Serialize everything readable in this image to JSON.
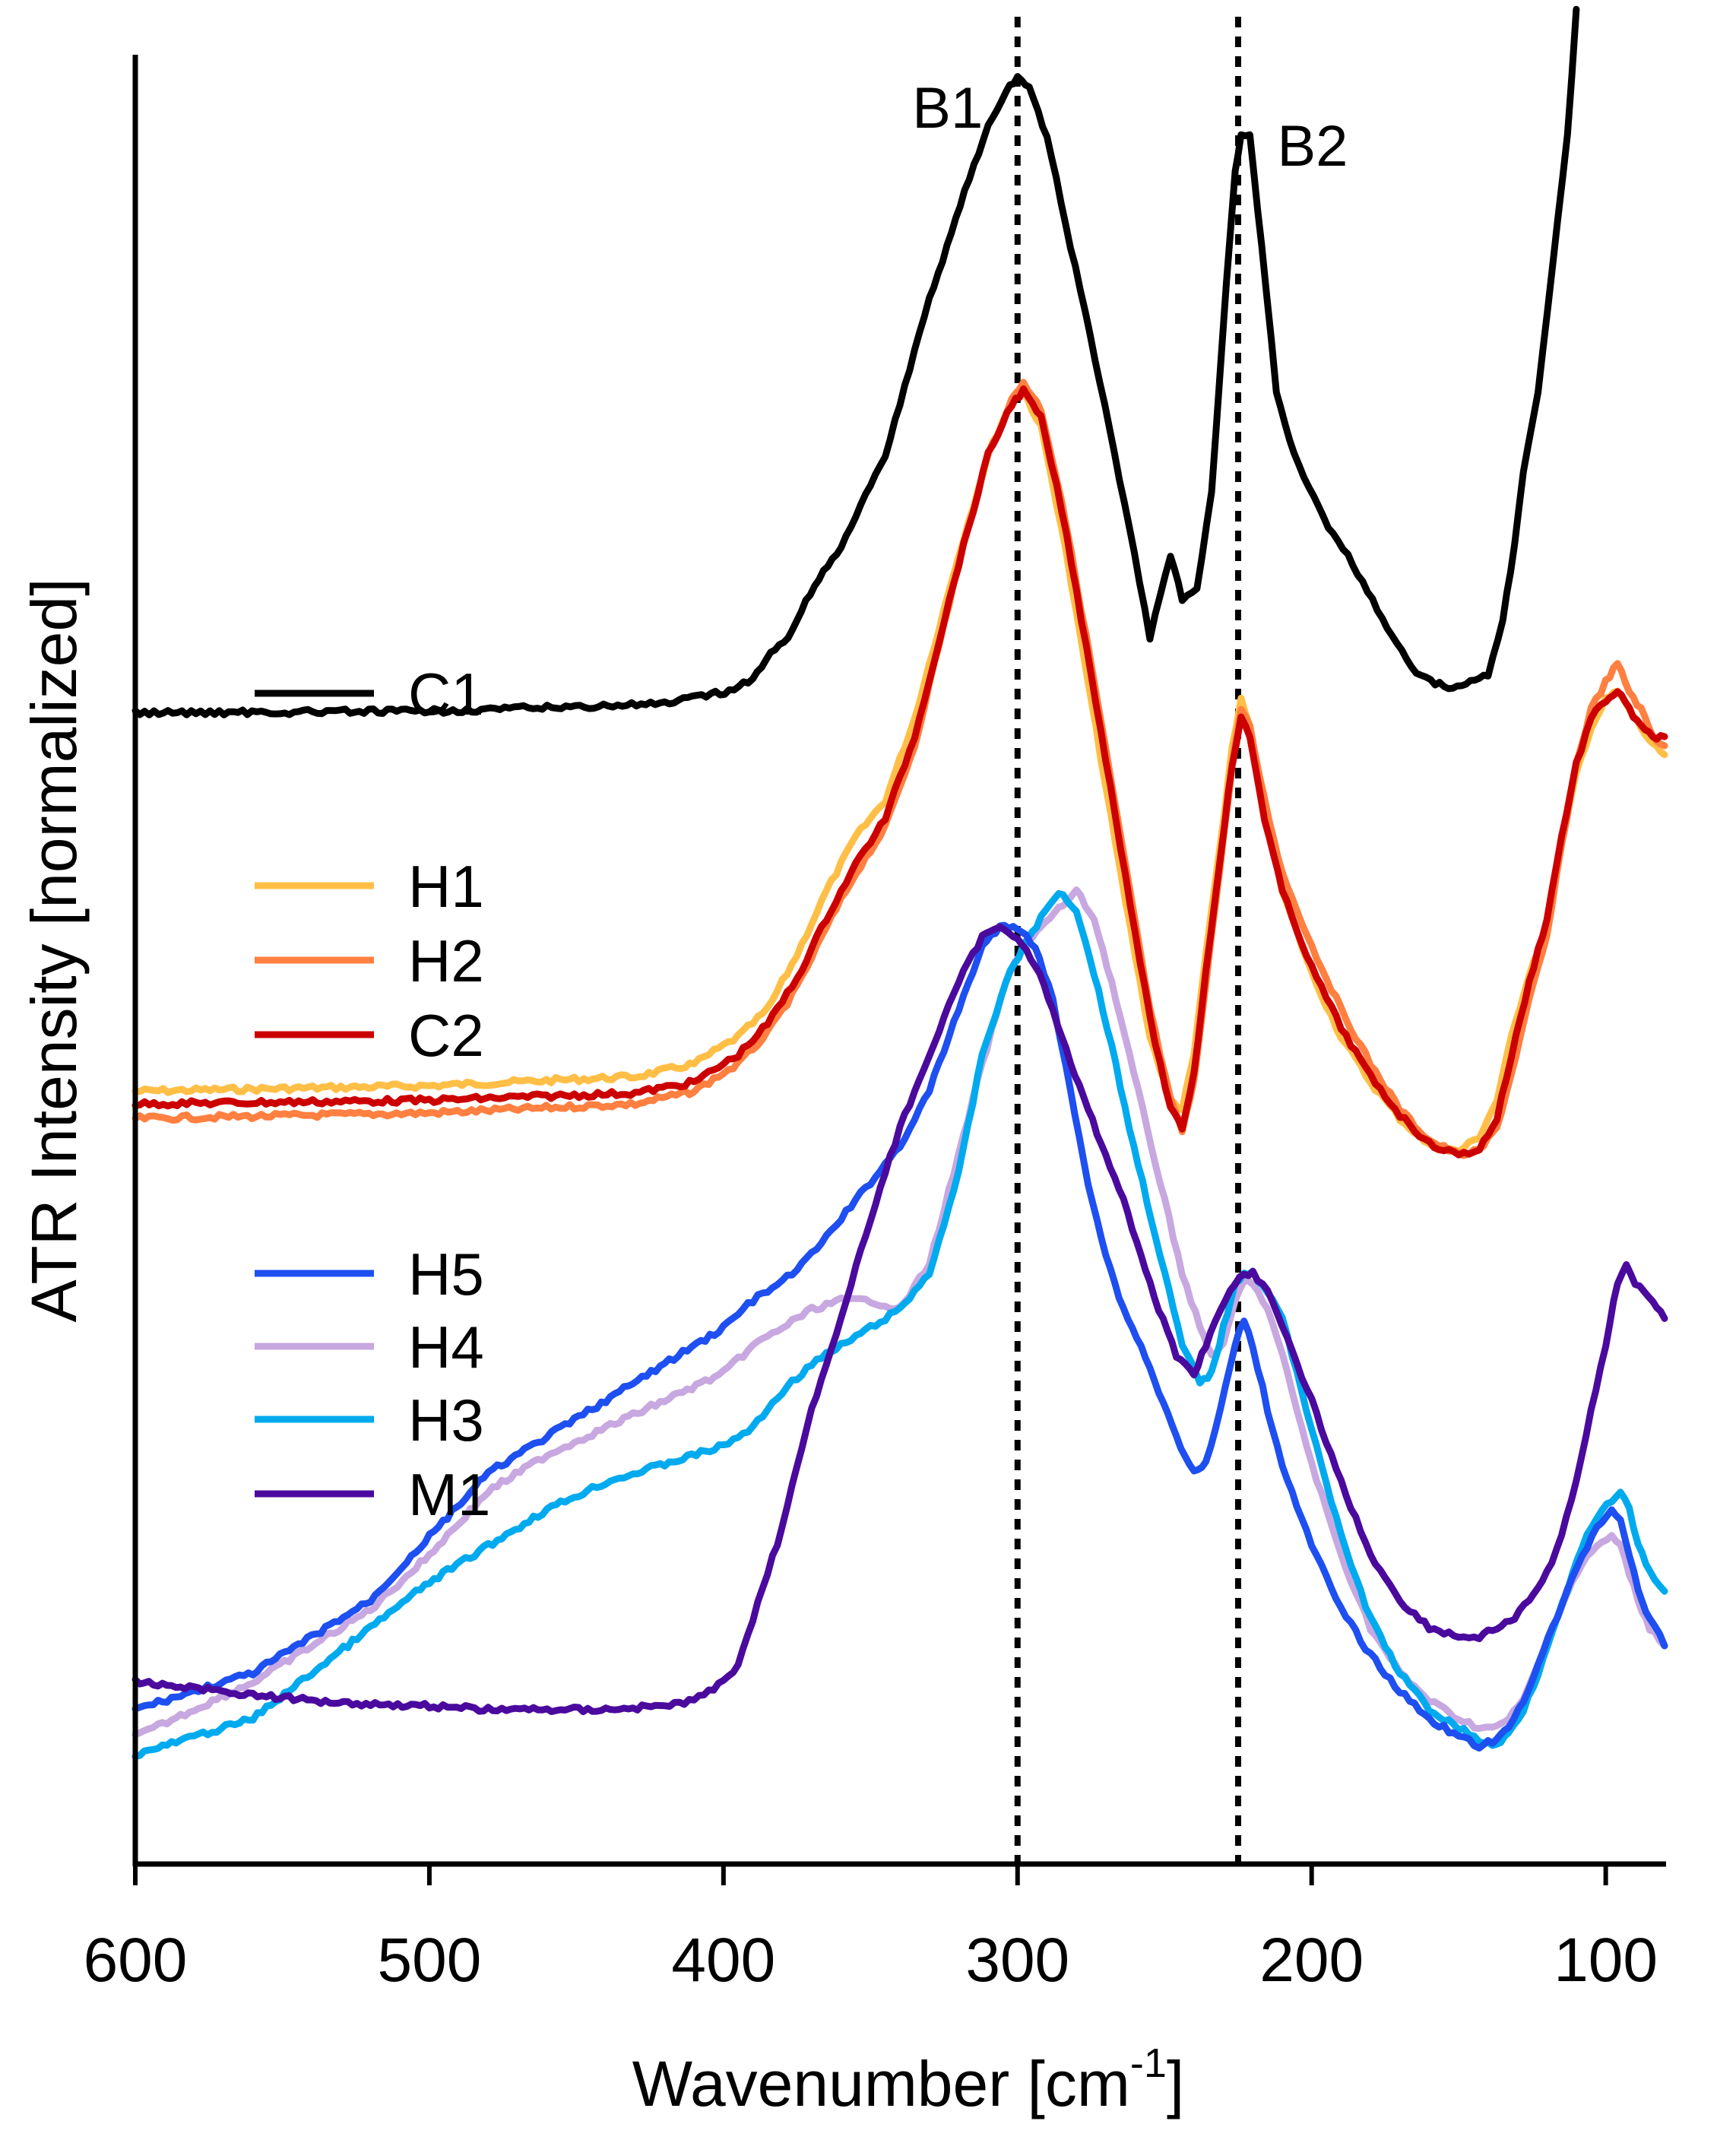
{
  "chart_data": {
    "type": "line",
    "title": "",
    "xlabel": "Wavenumber [cm",
    "xlabel_sup": "-1",
    "xlabel_suffix": "]",
    "ylabel": "ATR Intensity [normalized]",
    "xlim": [
      600,
      80
    ],
    "x_reversed": true,
    "y_ticks_shown": false,
    "ylim": [
      0,
      100
    ],
    "x_ticks": [
      600,
      500,
      400,
      300,
      200,
      100
    ],
    "x_tick_labels": [
      "600",
      "500",
      "400",
      "300",
      "200",
      "100"
    ],
    "reference_lines": [
      {
        "label": "B1",
        "x": 300,
        "style": "dotted"
      },
      {
        "label": "B2",
        "x": 225,
        "style": "dotted"
      }
    ],
    "legend_groups": [
      {
        "entries": [
          "C1"
        ]
      },
      {
        "entries": [
          "H1",
          "H2",
          "C2"
        ]
      },
      {
        "entries": [
          "H5",
          "H4",
          "H3",
          "M1"
        ]
      }
    ],
    "series": [
      {
        "name": "C1",
        "color": "#000000",
        "x": [
          600,
          500,
          420,
          398,
          390,
          384,
          378,
          372,
          360,
          345,
          330,
          318,
          310,
          304,
          300,
          296,
          290,
          282,
          272,
          262,
          255,
          248,
          244,
          239,
          234,
          229,
          226,
          224,
          221,
          217,
          212,
          206,
          196,
          186,
          176,
          166,
          158,
          152,
          146,
          140,
          135,
          131,
          128,
          123,
          118,
          113,
          110
        ],
        "y": [
          63.3,
          63.4,
          63.8,
          64.5,
          65.2,
          66.5,
          67.5,
          69.5,
          72.5,
          77.5,
          86,
          92,
          95.5,
          97.5,
          98.2,
          97.6,
          95,
          89,
          81.5,
          73.5,
          67.5,
          72,
          69.5,
          70,
          75.5,
          87,
          93,
          95.2,
          95,
          89,
          81,
          77.5,
          74,
          71.5,
          68.5,
          65.8,
          64.9,
          64.7,
          65,
          65.4,
          68.5,
          72.5,
          76.5,
          81,
          88,
          95,
          102
        ]
      },
      {
        "name": "H1",
        "color": "#FFBF47",
        "x": [
          600,
          500,
          430,
          410,
          395,
          385,
          375,
          365,
          355,
          345,
          335,
          320,
          310,
          302,
          298,
          292,
          285,
          275,
          265,
          255,
          248,
          244,
          240,
          236,
          231,
          227,
          224,
          221,
          216,
          210,
          200,
          190,
          180,
          170,
          160,
          150,
          143,
          137,
          132,
          126,
          120,
          115,
          110,
          105,
          100,
          96,
          92,
          88,
          84,
          80
        ],
        "y": [
          42.5,
          42.8,
          43.3,
          44,
          45.5,
          47,
          50,
          53.5,
          56.5,
          58.5,
          63,
          72,
          77.5,
          80.5,
          81,
          79,
          73.5,
          64,
          54.5,
          45.5,
          42,
          41.5,
          44.5,
          50,
          56,
          61.5,
          64,
          62.5,
          58,
          53.5,
          49,
          45.5,
          43,
          41,
          39.5,
          39.2,
          40,
          42,
          45.5,
          49,
          51.5,
          56,
          60,
          62.5,
          64,
          64.5,
          63.5,
          62.5,
          61.5,
          61
        ]
      },
      {
        "name": "H2",
        "color": "#FF8040",
        "x": [
          600,
          500,
          430,
          410,
          395,
          385,
          375,
          365,
          355,
          345,
          335,
          320,
          310,
          302,
          298,
          292,
          285,
          275,
          265,
          255,
          248,
          244,
          240,
          236,
          231,
          227,
          224,
          221,
          216,
          210,
          200,
          190,
          180,
          170,
          160,
          150,
          143,
          137,
          132,
          126,
          120,
          115,
          110,
          105,
          100,
          96,
          92,
          88,
          84,
          80
        ],
        "y": [
          41,
          41.3,
          41.8,
          42.5,
          44,
          45.7,
          48.2,
          51.5,
          54.5,
          57,
          61.5,
          71.5,
          77.5,
          80.5,
          81.5,
          80,
          75,
          66,
          56.5,
          47,
          42,
          40.3,
          43,
          48.5,
          55,
          60.5,
          63.5,
          62.5,
          58.5,
          54.5,
          50.5,
          47,
          44,
          41.5,
          39.8,
          39,
          39.2,
          40.5,
          43.5,
          47.5,
          51,
          56,
          60.5,
          63.5,
          65,
          66,
          64.5,
          63.5,
          62,
          61.5
        ]
      },
      {
        "name": "C2",
        "color": "#CC0000",
        "x": [
          600,
          500,
          430,
          410,
          395,
          385,
          375,
          365,
          355,
          345,
          335,
          320,
          310,
          302,
          298,
          292,
          285,
          275,
          265,
          255,
          248,
          244,
          240,
          236,
          231,
          227,
          224,
          221,
          216,
          210,
          200,
          190,
          180,
          170,
          160,
          150,
          143,
          137,
          132,
          126,
          120,
          115,
          110,
          105,
          100,
          96,
          92,
          88,
          84,
          80
        ],
        "y": [
          41.8,
          42,
          42.4,
          43,
          44.5,
          46.2,
          48.7,
          52,
          55,
          57.5,
          62,
          71.5,
          77.5,
          80.3,
          81,
          79.5,
          74.5,
          65.5,
          56,
          46.5,
          41.5,
          40.5,
          43.5,
          49,
          55.5,
          60.5,
          63,
          62,
          57.5,
          53.5,
          49.3,
          46,
          43.3,
          41.2,
          39.6,
          39,
          39.3,
          41,
          44.5,
          48.5,
          52,
          56.5,
          60.5,
          63,
          64,
          64.5,
          63.5,
          62.5,
          62,
          62
        ]
      },
      {
        "name": "H5",
        "color": "#1E4FF0",
        "x": [
          600,
          580,
          560,
          540,
          520,
          500,
          480,
          460,
          440,
          420,
          400,
          390,
          380,
          370,
          360,
          350,
          340,
          330,
          320,
          312,
          306,
          300,
          294,
          288,
          282,
          276,
          270,
          264,
          258,
          252,
          246,
          240,
          236,
          231,
          226,
          223,
          220,
          215,
          210,
          200,
          190,
          180,
          170,
          160,
          150,
          143,
          137,
          133,
          128,
          123,
          118,
          113,
          108,
          103,
          98,
          95,
          92,
          89,
          85,
          80
        ],
        "y": [
          8.5,
          9.5,
          10.5,
          12.5,
          14.5,
          18,
          21.5,
          23.5,
          25.5,
          27.5,
          29.5,
          31,
          32,
          33.5,
          35.5,
          37.5,
          39.5,
          42.5,
          47,
          50.5,
          51.5,
          51.5,
          50.5,
          47.5,
          42.5,
          37.5,
          33.5,
          30.5,
          28.5,
          26,
          23.5,
          21.5,
          22,
          25,
          28.5,
          30,
          28.5,
          25,
          22,
          17.5,
          14,
          11.5,
          9.5,
          8,
          7,
          6.5,
          6.8,
          7.5,
          9,
          11,
          13,
          15,
          17,
          18.5,
          19.5,
          19,
          17,
          15,
          13.5,
          12
        ]
      },
      {
        "name": "H4",
        "color": "#C8A8E0",
        "x": [
          600,
          580,
          560,
          540,
          520,
          500,
          480,
          460,
          440,
          420,
          400,
          390,
          380,
          370,
          360,
          350,
          340,
          330,
          320,
          312,
          304,
          298,
          292,
          286,
          280,
          274,
          268,
          262,
          256,
          250,
          244,
          238,
          234,
          230,
          226,
          223,
          220,
          215,
          210,
          200,
          190,
          180,
          170,
          160,
          150,
          143,
          137,
          133,
          128,
          123,
          118,
          113,
          108,
          103,
          98,
          95,
          92,
          89,
          85,
          80
        ],
        "y": [
          7,
          8.5,
          10,
          12,
          14,
          17,
          20.5,
          22.5,
          24,
          25.5,
          27,
          28.5,
          29.5,
          30.5,
          31,
          31,
          30.5,
          33,
          39,
          44,
          48.5,
          50.5,
          51.5,
          52.5,
          53.5,
          52,
          48.5,
          44.5,
          40.5,
          36.5,
          32.5,
          29.5,
          28,
          28.5,
          31,
          32,
          32,
          30.5,
          28,
          22,
          17,
          13,
          10.5,
          9,
          8,
          7.5,
          7.5,
          8,
          9,
          11,
          13,
          15,
          16.5,
          17.5,
          18,
          17.5,
          16,
          14.5,
          13,
          12
        ]
      },
      {
        "name": "H3",
        "color": "#00AAEE",
        "x": [
          600,
          580,
          560,
          540,
          520,
          500,
          480,
          460,
          440,
          420,
          400,
          390,
          380,
          370,
          360,
          350,
          340,
          330,
          320,
          312,
          304,
          298,
          292,
          286,
          280,
          274,
          268,
          262,
          256,
          250,
          244,
          238,
          234,
          230,
          226,
          223,
          220,
          215,
          210,
          200,
          190,
          180,
          170,
          160,
          150,
          143,
          137,
          133,
          128,
          123,
          118,
          113,
          108,
          103,
          98,
          95,
          92,
          89,
          85,
          80
        ],
        "y": [
          6,
          7,
          8,
          10.5,
          13,
          15.5,
          17.5,
          19.5,
          21,
          22,
          23,
          24,
          26,
          27.5,
          28.5,
          29.5,
          30.5,
          32.5,
          38,
          44.5,
          48.5,
          50.5,
          52,
          53.5,
          52.5,
          49,
          45,
          40.5,
          36.5,
          32.5,
          28.5,
          26.5,
          27,
          29.5,
          32,
          32.5,
          32.5,
          31.5,
          30,
          24,
          18,
          13.5,
          10.5,
          8.5,
          7.5,
          6.8,
          6.5,
          7.2,
          8.5,
          10.5,
          13,
          15,
          17.5,
          19,
          20,
          20.5,
          19.5,
          17.5,
          16,
          15
        ]
      },
      {
        "name": "M1",
        "color": "#4B0A9E",
        "x": [
          600,
          580,
          560,
          540,
          520,
          500,
          480,
          460,
          440,
          420,
          410,
          400,
          395,
          390,
          385,
          380,
          375,
          370,
          360,
          350,
          340,
          330,
          320,
          312,
          306,
          300,
          294,
          288,
          282,
          276,
          270,
          264,
          258,
          252,
          246,
          240,
          236,
          231,
          226,
          223,
          220,
          215,
          210,
          200,
          190,
          180,
          170,
          160,
          150,
          143,
          137,
          131,
          126,
          120,
          115,
          110,
          105,
          100,
          96,
          93,
          90,
          87,
          84,
          80
        ],
        "y": [
          10,
          9.7,
          9.3,
          9,
          8.8,
          8.7,
          8.5,
          8.5,
          8.5,
          8.7,
          9,
          10,
          11,
          13.5,
          16,
          18.5,
          22,
          25,
          30,
          35.5,
          40.5,
          44.5,
          48.5,
          51,
          51.5,
          51,
          49.5,
          47,
          44,
          41.5,
          39,
          36.5,
          33.5,
          30.5,
          28,
          27,
          28.5,
          30.5,
          32,
          32.5,
          32.5,
          31.5,
          29.5,
          25.5,
          21,
          17,
          14.5,
          13,
          12.5,
          12.5,
          13,
          13.5,
          14.5,
          16,
          18,
          21,
          25,
          28.5,
          32,
          33,
          32,
          31.5,
          31,
          30
        ]
      }
    ],
    "curve_labels": [
      {
        "text": "B1",
        "near": "B1 dotted line, left of the C1 peak"
      },
      {
        "text": "B2",
        "near": "B2 dotted line, right of the C1 peak"
      }
    ]
  }
}
